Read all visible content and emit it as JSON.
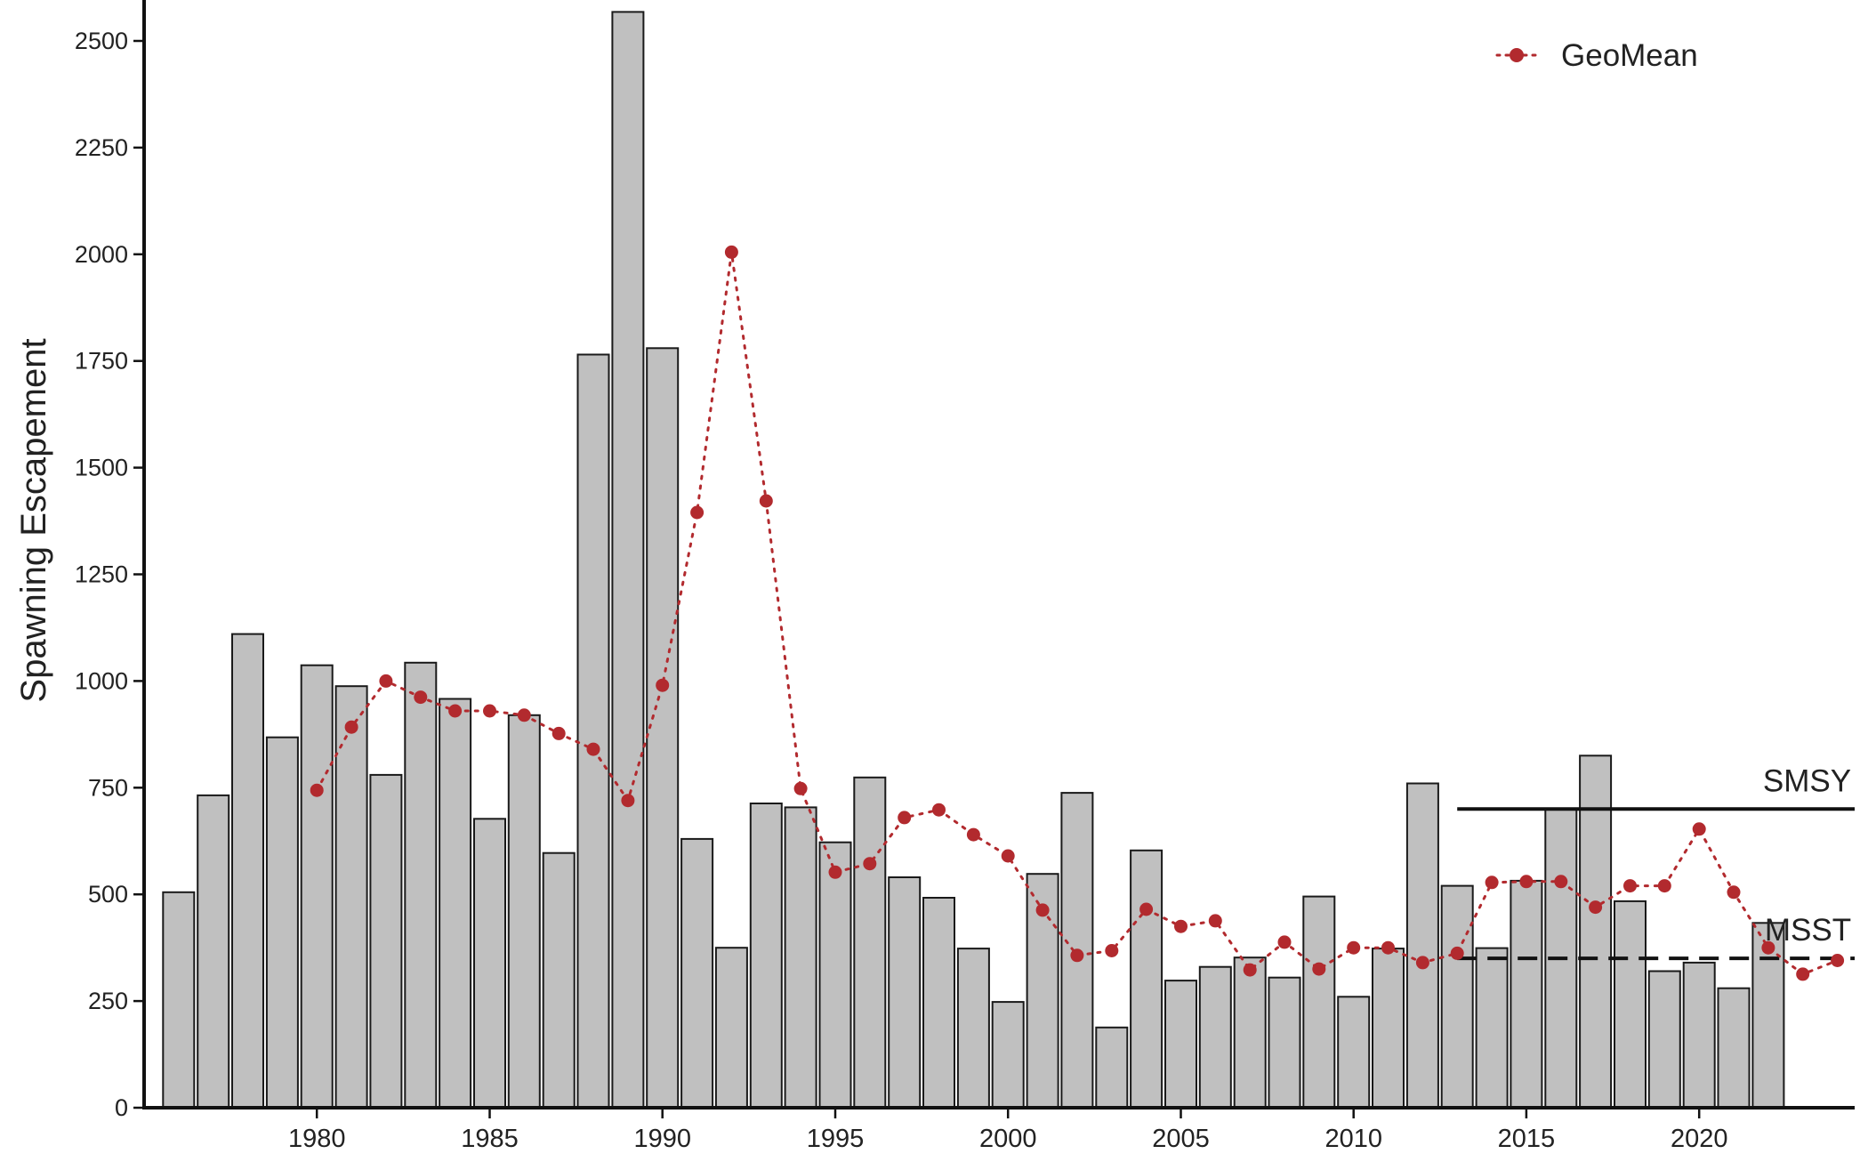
{
  "chart_data": {
    "type": "bar",
    "ylabel": "Spawning Escapement",
    "xlabel": "",
    "ylim": [
      0,
      2600
    ],
    "xlim": [
      1975,
      2024.5
    ],
    "yticks": [
      0,
      250,
      500,
      750,
      1000,
      1250,
      1500,
      1750,
      2000,
      2250,
      2500
    ],
    "xticks": [
      1980,
      1985,
      1990,
      1995,
      2000,
      2005,
      2010,
      2015,
      2020
    ],
    "grid": false,
    "bars": {
      "color": "#c0c0c0",
      "edge_color": "#1a1a1a",
      "x": [
        1976,
        1977,
        1978,
        1979,
        1980,
        1981,
        1982,
        1983,
        1984,
        1985,
        1986,
        1987,
        1988,
        1989,
        1990,
        1991,
        1992,
        1993,
        1994,
        1995,
        1996,
        1997,
        1998,
        1999,
        2000,
        2001,
        2002,
        2003,
        2004,
        2005,
        2006,
        2007,
        2008,
        2009,
        2010,
        2011,
        2012,
        2013,
        2014,
        2015,
        2016,
        2017,
        2018,
        2019,
        2020,
        2021,
        2022
      ],
      "values": [
        505,
        732,
        1110,
        868,
        1037,
        988,
        780,
        1043,
        958,
        677,
        920,
        597,
        1765,
        2568,
        1780,
        630,
        375,
        713,
        704,
        622,
        774,
        540,
        492,
        373,
        248,
        548,
        738,
        188,
        603,
        298,
        330,
        352,
        305,
        495,
        260,
        373,
        760,
        520,
        374,
        532,
        700,
        825,
        484,
        320,
        340,
        280,
        433
      ]
    },
    "series": [
      {
        "name": "GeoMean",
        "style": "dotted line with markers",
        "color": "#b22a2e",
        "x": [
          1980,
          1981,
          1982,
          1983,
          1984,
          1985,
          1986,
          1987,
          1988,
          1989,
          1990,
          1991,
          1992,
          1993,
          1994,
          1995,
          1996,
          1997,
          1998,
          1999,
          2000,
          2001,
          2002,
          2003,
          2004,
          2005,
          2006,
          2007,
          2008,
          2009,
          2010,
          2011,
          2012,
          2013,
          2014,
          2015,
          2016,
          2017,
          2018,
          2019,
          2020,
          2021,
          2022,
          2023,
          2024
        ],
        "values": [
          744,
          892,
          1000,
          962,
          930,
          930,
          920,
          877,
          840,
          720,
          990,
          1395,
          2005,
          1422,
          748,
          552,
          572,
          680,
          698,
          640,
          590,
          463,
          357,
          368,
          465,
          425,
          438,
          323,
          388,
          325,
          375,
          375,
          340,
          362,
          528,
          530,
          530,
          470,
          520,
          520,
          653,
          505,
          375,
          313,
          345
        ]
      }
    ],
    "reference_lines": [
      {
        "label": "SMSY",
        "value": 700,
        "x_start": 2013,
        "x_end": 2024.5,
        "style": "solid"
      },
      {
        "label": "MSST",
        "value": 350,
        "x_start": 2013,
        "x_end": 2024.5,
        "style": "dashed"
      }
    ],
    "legend": {
      "placement": "top-right",
      "entries": [
        "GeoMean"
      ]
    }
  }
}
